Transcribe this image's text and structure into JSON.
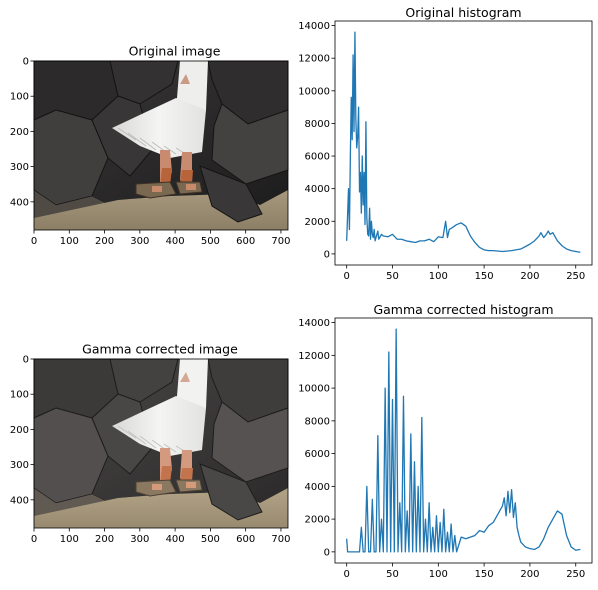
{
  "chart_data": [
    {
      "type": "image",
      "title": "Original image",
      "xticks": [
        0,
        100,
        200,
        300,
        400,
        500,
        600,
        700
      ],
      "yticks": [
        0,
        100,
        200,
        300,
        400
      ],
      "xlim": [
        0,
        720
      ],
      "ylim": [
        480,
        0
      ],
      "variant": "original"
    },
    {
      "type": "line",
      "title": "Original histogram",
      "xticks": [
        0,
        50,
        100,
        150,
        200,
        250
      ],
      "yticks": [
        0,
        2000,
        4000,
        6000,
        8000,
        10000,
        12000,
        14000
      ],
      "xlim": [
        -12.75,
        267.75
      ],
      "ylim": [
        -680,
        14280
      ],
      "color": "#1f77b4",
      "series": [
        {
          "x": [
            0,
            2,
            3,
            4,
            5,
            6,
            7,
            8,
            9,
            10,
            11,
            12,
            13,
            14,
            15,
            16,
            17,
            18,
            19,
            20,
            21,
            22,
            23,
            24,
            25,
            26,
            27,
            28,
            29,
            30,
            31,
            32,
            33,
            34,
            35,
            36,
            38,
            40,
            45,
            50,
            55,
            60,
            65,
            70,
            75,
            80,
            85,
            90,
            95,
            100,
            105,
            108,
            110,
            112,
            115,
            120,
            125,
            130,
            135,
            140,
            145,
            150,
            155,
            160,
            170,
            180,
            190,
            200,
            205,
            210,
            212,
            215,
            218,
            220,
            222,
            225,
            228,
            230,
            235,
            240,
            245,
            250,
            255
          ],
          "y": [
            800,
            4000,
            1500,
            6000,
            9600,
            7000,
            12200,
            7500,
            13600,
            8300,
            6500,
            7200,
            9000,
            3800,
            5000,
            2500,
            6000,
            3000,
            5000,
            1800,
            8100,
            2200,
            1200,
            1100,
            2800,
            900,
            2000,
            1200,
            1000,
            1500,
            800,
            1000,
            1200,
            1400,
            900,
            1000,
            1200,
            1100,
            1050,
            1200,
            900,
            900,
            800,
            750,
            700,
            800,
            800,
            900,
            750,
            1050,
            1000,
            2000,
            1000,
            1500,
            1600,
            1800,
            1900,
            1700,
            1100,
            700,
            400,
            250,
            200,
            200,
            150,
            200,
            300,
            600,
            800,
            1100,
            1300,
            1000,
            1200,
            1400,
            1200,
            1300,
            1000,
            800,
            500,
            300,
            200,
            150,
            100
          ]
        }
      ]
    },
    {
      "type": "image",
      "title": "Gamma corrected image",
      "xticks": [
        0,
        100,
        200,
        300,
        400,
        500,
        600,
        700
      ],
      "yticks": [
        0,
        100,
        200,
        300,
        400
      ],
      "xlim": [
        0,
        720
      ],
      "ylim": [
        480,
        0
      ],
      "variant": "gamma"
    },
    {
      "type": "line",
      "title": "Gamma corrected histogram",
      "xticks": [
        0,
        50,
        100,
        150,
        200,
        250
      ],
      "yticks": [
        0,
        2000,
        4000,
        6000,
        8000,
        10000,
        12000,
        14000
      ],
      "xlim": [
        -12.75,
        267.75
      ],
      "ylim": [
        -680,
        14280
      ],
      "color": "#1f77b4",
      "series": [
        {
          "x": [
            0,
            1,
            2,
            5,
            10,
            14,
            16,
            18,
            20,
            22,
            24,
            26,
            28,
            30,
            32,
            34,
            36,
            38,
            40,
            42,
            44,
            46,
            48,
            50,
            52,
            54,
            56,
            58,
            60,
            62,
            64,
            66,
            68,
            70,
            72,
            74,
            76,
            78,
            80,
            82,
            84,
            86,
            88,
            90,
            92,
            94,
            96,
            98,
            100,
            102,
            104,
            106,
            108,
            110,
            112,
            114,
            116,
            118,
            120,
            125,
            130,
            135,
            140,
            145,
            150,
            155,
            160,
            165,
            170,
            172,
            174,
            176,
            178,
            180,
            182,
            184,
            186,
            188,
            190,
            195,
            200,
            205,
            210,
            215,
            220,
            225,
            230,
            235,
            240,
            245,
            250,
            255
          ],
          "y": [
            800,
            0,
            0,
            0,
            0,
            0,
            1500,
            0,
            0,
            4000,
            0,
            0,
            3200,
            0,
            0,
            7100,
            0,
            2000,
            0,
            10000,
            0,
            12200,
            0,
            9300,
            0,
            13600,
            0,
            3000,
            0,
            9500,
            0,
            2500,
            0,
            7200,
            0,
            5500,
            0,
            4000,
            0,
            8200,
            0,
            2000,
            0,
            3000,
            0,
            1500,
            0,
            2200,
            0,
            1800,
            0,
            2600,
            0,
            1200,
            0,
            1700,
            0,
            1000,
            0,
            900,
            800,
            900,
            1000,
            1300,
            1200,
            1600,
            1800,
            2300,
            2800,
            3300,
            2200,
            3700,
            2400,
            3800,
            2100,
            3000,
            1500,
            1000,
            600,
            300,
            200,
            150,
            300,
            800,
            1500,
            2000,
            2500,
            2300,
            1000,
            300,
            100,
            150
          ]
        }
      ]
    }
  ]
}
